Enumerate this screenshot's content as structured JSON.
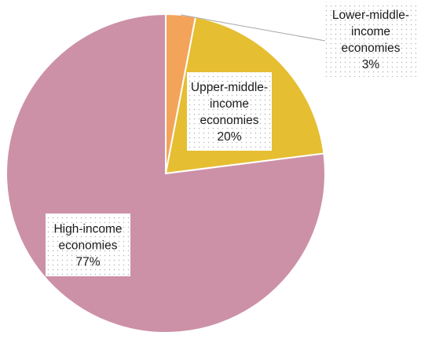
{
  "chart_data": {
    "type": "pie",
    "title": "",
    "start_angle_deg": 0,
    "direction": "clockwise",
    "slices": [
      {
        "label": "Lower-middle-income economies",
        "value": 3,
        "value_label": "3%",
        "label_lines": [
          "Lower-middle-",
          "income",
          "economies",
          "3%"
        ],
        "color": "#f4a35a"
      },
      {
        "label": "Upper-middle-income economies",
        "value": 20,
        "value_label": "20%",
        "label_lines": [
          "Upper-middle-",
          "income",
          "economies",
          "20%"
        ],
        "color": "#e5be32"
      },
      {
        "label": "High-income economies",
        "value": 77,
        "value_label": "77%",
        "label_lines": [
          "High-income",
          "economies",
          "77%"
        ],
        "color": "#cc91a7"
      }
    ]
  }
}
